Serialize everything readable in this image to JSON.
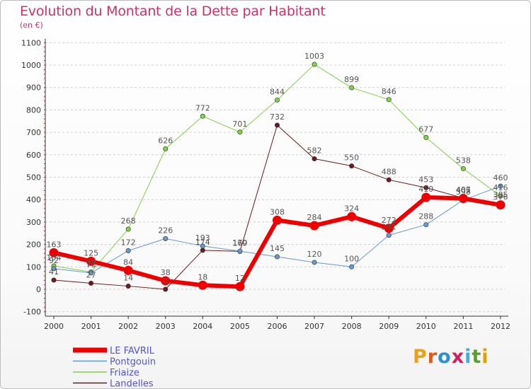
{
  "title": "Evolution du Montant de la Dette par Habitant",
  "subtitle": "(en €)",
  "logo": {
    "letters": [
      "P",
      "r",
      "o",
      "x",
      "i",
      "t",
      "i"
    ],
    "colors": [
      "#e8a020",
      "#e05a20",
      "#2f8fd0",
      "#d02060",
      "#4aa8dc",
      "#5aa02c",
      "#e0a000"
    ]
  },
  "chart_data": {
    "type": "line",
    "title": "Evolution du Montant de la Dette par Habitant",
    "ylabel": "(en €)",
    "xlabel": "",
    "ylim": [
      -100,
      1100
    ],
    "yticks": [
      -100,
      0,
      100,
      200,
      300,
      400,
      500,
      600,
      700,
      800,
      900,
      1000,
      1100
    ],
    "categories": [
      "2000",
      "2001",
      "2002",
      "2003",
      "2004",
      "2005",
      "2006",
      "2007",
      "2008",
      "2009",
      "2010",
      "2011",
      "2012"
    ],
    "grid": "horizontal dashed",
    "legend": "bottom-left",
    "series": [
      {
        "name": "Landelles",
        "color": "#6b1a1a",
        "width": 1,
        "values": [
          41,
          27,
          14,
          0,
          174,
          169,
          732,
          582,
          550,
          488,
          453,
          407,
          385
        ]
      },
      {
        "name": "Friaize",
        "color": "#7fd04a",
        "width": 1,
        "values": [
          104,
          77,
          268,
          626,
          772,
          701,
          844,
          1003,
          899,
          846,
          677,
          538,
          416
        ]
      },
      {
        "name": "Pontgouin",
        "color": "#6699cc",
        "width": 1,
        "values": [
          92,
          73,
          172,
          226,
          193,
          170,
          145,
          120,
          100,
          241,
          288,
          398,
          460
        ]
      },
      {
        "name": "LE FAVRIL",
        "color": "#ee0000",
        "width": 6,
        "values": [
          163,
          125,
          84,
          38,
          18,
          12,
          308,
          284,
          324,
          272,
          410,
          405,
          376
        ]
      }
    ],
    "data_labels": {
      "LE FAVRIL": [
        "163",
        "125",
        "84",
        "38",
        "18",
        "12",
        "308",
        "284",
        "324",
        "272",
        "410",
        "405",
        "376"
      ],
      "Pontgouin": [
        "92",
        "73",
        "172",
        "226",
        "193",
        "170",
        "145",
        "120",
        "100",
        "241",
        "288",
        "398",
        "460"
      ],
      "Friaize": [
        "104",
        "77",
        "268",
        "626",
        "772",
        "701",
        "844",
        "1003",
        "899",
        "846",
        "677",
        "538",
        "416"
      ],
      "Landelles": [
        "41",
        "27",
        "14",
        "0",
        "174",
        "169",
        "732",
        "582",
        "550",
        "488",
        "453",
        "407",
        "385"
      ]
    },
    "legend_order": [
      "LE FAVRIL",
      "Pontgouin",
      "Friaize",
      "Landelles"
    ]
  }
}
